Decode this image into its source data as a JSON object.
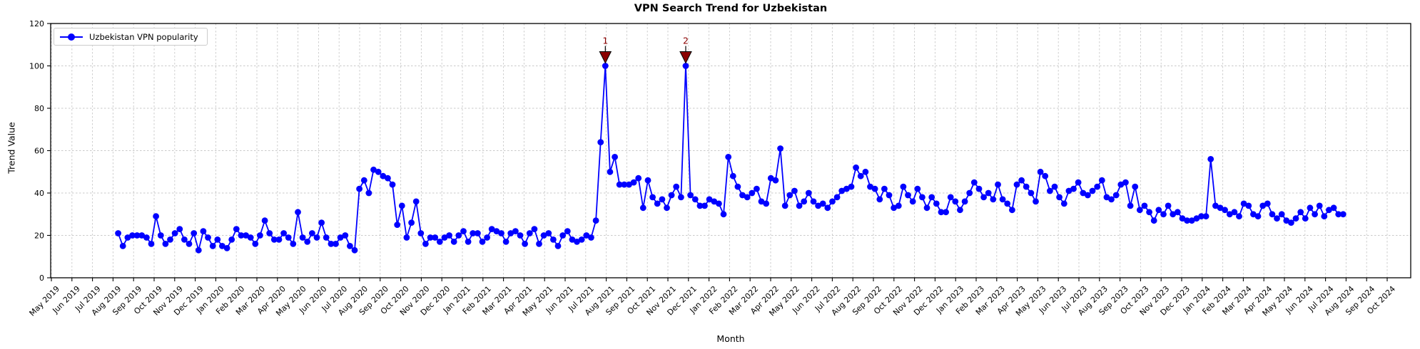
{
  "title": "VPN Search Trend for Uzbekistan",
  "legend": {
    "label": "Uzbekistan VPN popularity"
  },
  "axes": {
    "x_label": "Month",
    "y_label": "Trend Value"
  },
  "chart_data": {
    "type": "line",
    "title": "VPN Search Trend for Uzbekistan",
    "xlabel": "Month",
    "ylabel": "Trend Value",
    "ylim": [
      0,
      120
    ],
    "grid": true,
    "legend_position": "upper left",
    "line_color": "#0000ff",
    "annotation_color": "#8b0000",
    "y_ticks": [
      0,
      20,
      40,
      60,
      80,
      100,
      120
    ],
    "x_tick_labels": [
      "May 2019",
      "Jun 2019",
      "Jul 2019",
      "Aug 2019",
      "Sep 2019",
      "Oct 2019",
      "Nov 2019",
      "Dec 2019",
      "Jan 2020",
      "Feb 2020",
      "Mar 2020",
      "Apr 2020",
      "May 2020",
      "Jun 2020",
      "Jul 2020",
      "Aug 2020",
      "Sep 2020",
      "Oct 2020",
      "Nov 2020",
      "Dec 2020",
      "Jan 2021",
      "Feb 2021",
      "Mar 2021",
      "Apr 2021",
      "May 2021",
      "Jun 2021",
      "Jul 2021",
      "Aug 2021",
      "Sep 2021",
      "Oct 2021",
      "Nov 2021",
      "Dec 2021",
      "Jan 2022",
      "Feb 2022",
      "Mar 2022",
      "Apr 2022",
      "May 2022",
      "Jun 2022",
      "Jul 2022",
      "Aug 2022",
      "Sep 2022",
      "Oct 2022",
      "Nov 2022",
      "Dec 2022",
      "Jan 2023",
      "Feb 2023",
      "Mar 2023",
      "Apr 2023",
      "May 2023",
      "Jun 2023",
      "Jul 2023",
      "Aug 2023",
      "Sep 2023",
      "Oct 2023",
      "Nov 2023",
      "Dec 2023",
      "Jan 2024",
      "Feb 2024",
      "Mar 2024",
      "Apr 2024",
      "May 2024",
      "Jun 2024",
      "Jul 2024",
      "Aug 2024",
      "Sep 2024",
      "Oct 2024"
    ],
    "x_start_month_offset": 3.25,
    "weeks_per_month": 4.345,
    "annotations": [
      {
        "label": "1",
        "point_index": 103
      },
      {
        "label": "2",
        "point_index": 120
      }
    ],
    "series": [
      {
        "name": "Uzbekistan VPN popularity",
        "color": "#0000ff",
        "values": [
          21,
          15,
          19,
          20,
          20,
          20,
          19,
          16,
          29,
          20,
          16,
          18,
          21,
          23,
          18,
          16,
          21,
          13,
          22,
          19,
          15,
          18,
          15,
          14,
          18,
          23,
          20,
          20,
          19,
          16,
          20,
          27,
          21,
          18,
          18,
          21,
          19,
          16,
          31,
          19,
          17,
          21,
          19,
          26,
          19,
          16,
          16,
          19,
          20,
          15,
          13,
          42,
          46,
          40,
          51,
          50,
          48,
          47,
          44,
          25,
          34,
          19,
          26,
          36,
          21,
          16,
          19,
          19,
          17,
          19,
          20,
          17,
          20,
          22,
          17,
          21,
          21,
          17,
          19,
          23,
          22,
          21,
          17,
          21,
          22,
          20,
          16,
          21,
          23,
          16,
          20,
          21,
          18,
          15,
          20,
          22,
          18,
          17,
          18,
          20,
          19,
          27,
          64,
          100,
          50,
          57,
          44,
          44,
          44,
          45,
          47,
          33,
          46,
          38,
          35,
          37,
          33,
          39,
          43,
          38,
          100,
          39,
          37,
          34,
          34,
          37,
          36,
          35,
          30,
          57,
          48,
          43,
          39,
          38,
          40,
          42,
          36,
          35,
          47,
          46,
          61,
          34,
          39,
          41,
          34,
          36,
          40,
          36,
          34,
          35,
          33,
          36,
          38,
          41,
          42,
          43,
          52,
          48,
          50,
          43,
          42,
          37,
          42,
          39,
          33,
          34,
          43,
          39,
          36,
          42,
          38,
          33,
          38,
          35,
          31,
          31,
          38,
          36,
          32,
          36,
          40,
          45,
          42,
          38,
          40,
          37,
          44,
          37,
          35,
          32,
          44,
          46,
          43,
          40,
          36,
          50,
          48,
          41,
          43,
          38,
          35,
          41,
          42,
          45,
          40,
          39,
          41,
          43,
          46,
          38,
          37,
          39,
          44,
          45,
          34,
          43,
          32,
          34,
          31,
          27,
          32,
          30,
          34,
          30,
          31,
          28,
          27,
          27,
          28,
          29,
          29,
          56,
          34,
          33,
          32,
          30,
          31,
          29,
          35,
          34,
          30,
          29,
          34,
          35,
          30,
          28,
          30,
          27,
          26,
          28,
          31,
          28,
          33,
          30,
          34,
          29,
          32,
          33,
          30,
          30
        ]
      }
    ]
  }
}
